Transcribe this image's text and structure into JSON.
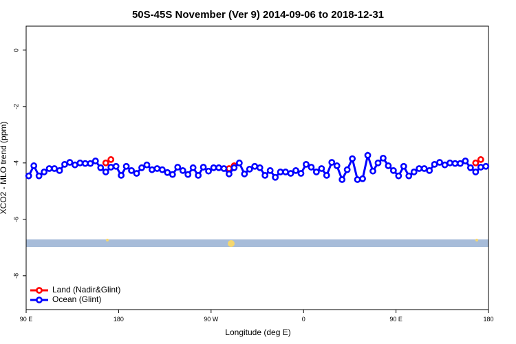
{
  "chart_data": {
    "type": "line",
    "title": "50S-45S November (Ver 9)   2014-09-06 to 2018-12-31",
    "x_label": "Longitude (deg E)",
    "y_label": "XCO2 - MLO trend (ppm)",
    "xlim": [
      90,
      540
    ],
    "ylim": [
      -9.2,
      0.85
    ],
    "xticks": [
      {
        "value": 90,
        "label": "90 E"
      },
      {
        "value": 180,
        "label": "180"
      },
      {
        "value": 270,
        "label": "90 W"
      },
      {
        "value": 360,
        "label": "0"
      },
      {
        "value": 450,
        "label": "90 E"
      },
      {
        "value": 540,
        "label": "180"
      }
    ],
    "yticks": [
      0,
      -2,
      -4,
      -6,
      -8
    ],
    "legend": "bottom-left",
    "series": [
      {
        "name": "Land (Nadir&Glint)",
        "color": "#ff0000",
        "x": [
          167.5,
          172.5,
          230,
          287.5,
          292.5,
          410,
          527.5,
          532.5
        ],
        "values": [
          -4.0,
          -3.88,
          null,
          -4.2,
          -4.1,
          null,
          -4.0,
          -3.88
        ]
      },
      {
        "name": "Ocean (Glint)",
        "color": "#0000ff",
        "x": [
          92.5,
          97.5,
          102.5,
          107.5,
          112.5,
          117.5,
          122.5,
          127.5,
          132.5,
          137.5,
          142.5,
          147.5,
          152.5,
          157.5,
          162.5,
          167.5,
          172.5,
          177.5,
          182.5,
          187.5,
          192.5,
          197.5,
          202.5,
          207.5,
          212.5,
          217.5,
          222.5,
          227.5,
          232.5,
          237.5,
          242.5,
          247.5,
          252.5,
          257.5,
          262.5,
          267.5,
          272.5,
          277.5,
          282.5,
          287.5,
          292.5,
          297.5,
          302.5,
          307.5,
          312.5,
          317.5,
          322.5,
          327.5,
          332.5,
          337.5,
          342.5,
          347.5,
          352.5,
          357.5,
          362.5,
          367.5,
          372.5,
          377.5,
          382.5,
          387.5,
          392.5,
          397.5,
          402.5,
          407.5,
          412.5,
          417.5,
          422.5,
          427.5,
          432.5,
          437.5,
          442.5,
          447.5,
          452.5,
          457.5,
          462.5,
          467.5,
          472.5,
          477.5,
          482.5,
          487.5,
          492.5,
          497.5,
          502.5,
          507.5,
          512.5,
          517.5,
          522.5,
          527.5,
          532.5,
          537.5
        ],
        "values": [
          -4.46,
          -4.1,
          -4.46,
          -4.32,
          -4.2,
          -4.2,
          -4.27,
          -4.05,
          -3.98,
          -4.07,
          -4.0,
          -4.02,
          -4.02,
          -3.93,
          -4.17,
          -4.32,
          -4.15,
          -4.12,
          -4.44,
          -4.12,
          -4.27,
          -4.37,
          -4.17,
          -4.07,
          -4.24,
          -4.2,
          -4.24,
          -4.34,
          -4.41,
          -4.15,
          -4.27,
          -4.41,
          -4.17,
          -4.44,
          -4.15,
          -4.29,
          -4.17,
          -4.17,
          -4.2,
          -4.39,
          -4.17,
          -4.0,
          -4.39,
          -4.22,
          -4.12,
          -4.17,
          -4.44,
          -4.27,
          -4.51,
          -4.32,
          -4.32,
          -4.37,
          -4.27,
          -4.37,
          -4.05,
          -4.15,
          -4.32,
          -4.2,
          -4.44,
          -3.98,
          -4.1,
          -4.59,
          -4.24,
          -3.85,
          -4.59,
          -4.56,
          -3.73,
          -4.29,
          -4.0,
          -3.83,
          -4.1,
          -4.27,
          -4.46,
          -4.12,
          -4.46,
          -4.32,
          -4.2,
          -4.2,
          -4.27,
          -4.05,
          -3.98,
          -4.07,
          -4.0,
          -4.02,
          -4.02,
          -3.93,
          -4.17,
          -4.32,
          -4.15,
          -4.12
        ]
      }
    ]
  }
}
